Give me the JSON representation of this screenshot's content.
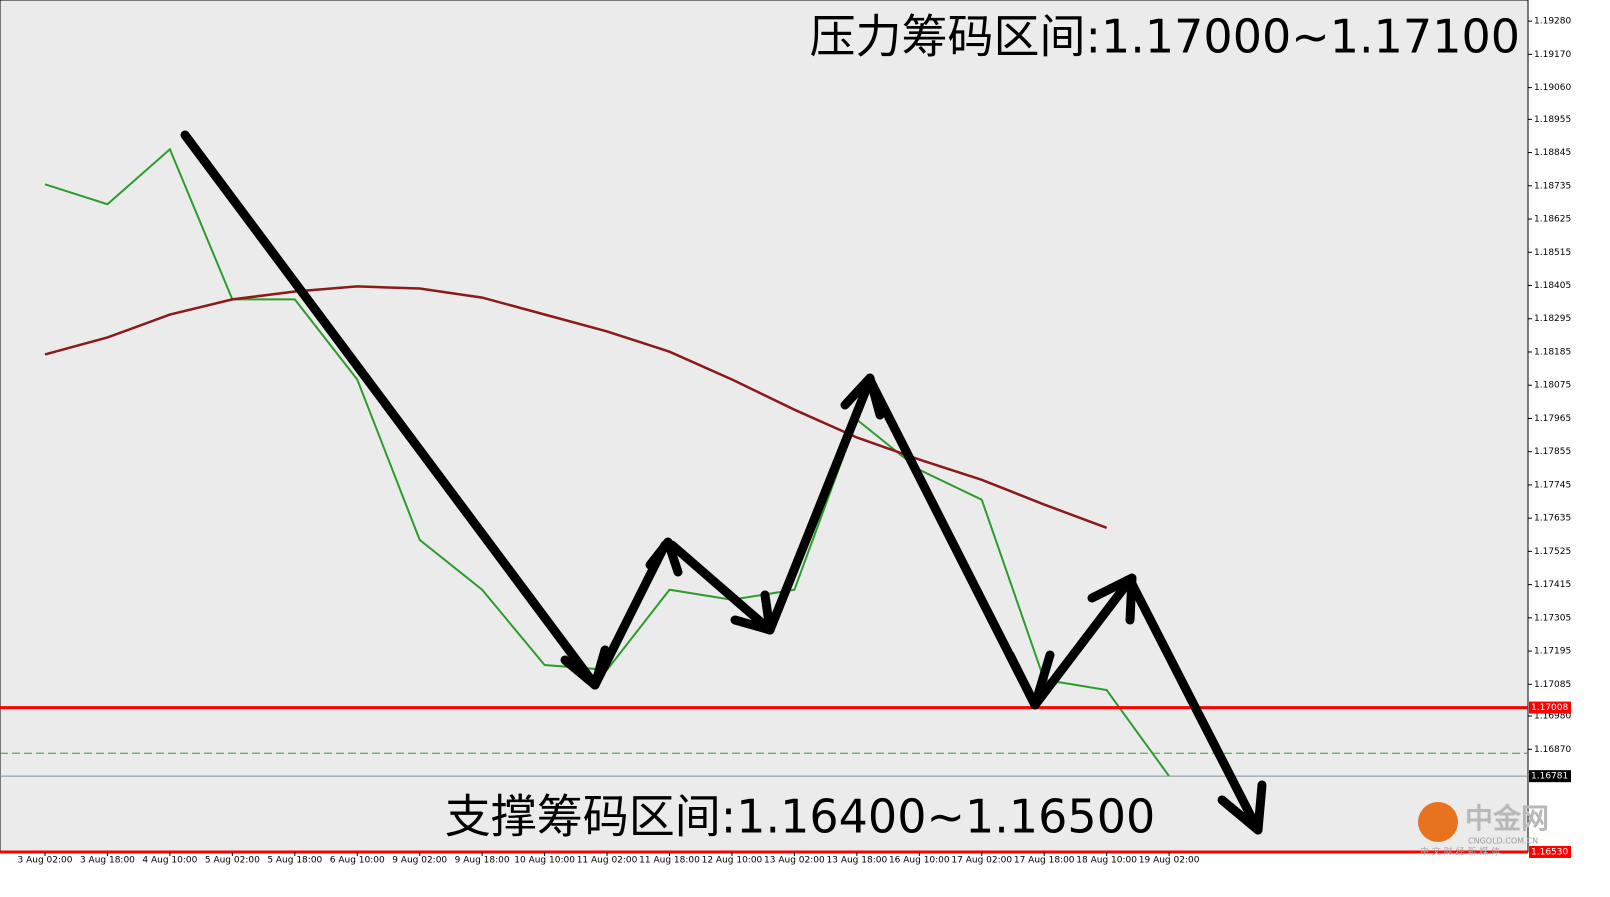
{
  "chart_data": {
    "type": "line",
    "annotations": [
      "压力筹码区间:1.17000~1.17100",
      "支撑筹码区间:1.16400~1.16500"
    ],
    "logo": {
      "name": "中金网",
      "site": "CNGOLD.COM.CN",
      "slogan": "中 文 财 经 新 媒 体"
    },
    "categories": [
      "3 Aug 02:00",
      "3 Aug 18:00",
      "4 Aug 10:00",
      "5 Aug 02:00",
      "5 Aug 18:00",
      "6 Aug 10:00",
      "9 Aug 02:00",
      "9 Aug 18:00",
      "10 Aug 10:00",
      "11 Aug 02:00",
      "11 Aug 18:00",
      "12 Aug 10:00",
      "13 Aug 02:00",
      "13 Aug 18:00",
      "16 Aug 10:00",
      "17 Aug 02:00",
      "17 Aug 18:00",
      "18 Aug 10:00",
      "19 Aug 02:00"
    ],
    "series": [
      {
        "name": "Price",
        "color": "#2a9d2a",
        "values": [
          1.1874,
          1.18674,
          1.18856,
          1.18359,
          1.18359,
          1.18094,
          1.17563,
          1.17398,
          1.17149,
          1.17133,
          1.17398,
          1.17365,
          1.17398,
          1.17961,
          1.17795,
          1.17696,
          1.171,
          1.17066,
          1.16781
        ]
      },
      {
        "name": "MA",
        "color": "#8b1a1a",
        "values": [
          1.18177,
          1.18233,
          1.18309,
          1.18359,
          1.18385,
          1.18402,
          1.18395,
          1.18365,
          1.18309,
          1.18253,
          1.18186,
          1.18094,
          1.17994,
          1.17902,
          1.17829,
          1.17762,
          1.1768,
          1.17603,
          null
        ]
      }
    ],
    "levels": [
      {
        "value": 1.17008,
        "label": "1.17008",
        "color": "#ff0000"
      },
      {
        "value": 1.16857,
        "label": "",
        "color": "#22aa22"
      },
      {
        "value": 1.16781,
        "label": "1.16781",
        "color": "#7f8fa0"
      },
      {
        "value": 1.1653,
        "label": "1.16530",
        "color": "#ff0000"
      }
    ],
    "ylim": [
      1.1653,
      1.1935
    ],
    "yticks": [
      {
        "value": 1.1928,
        "label": "1.19280"
      },
      {
        "value": 1.1917,
        "label": "1.19170"
      },
      {
        "value": 1.1906,
        "label": "1.19060"
      },
      {
        "value": 1.18955,
        "label": "1.18955"
      },
      {
        "value": 1.18845,
        "label": "1.18845"
      },
      {
        "value": 1.18735,
        "label": "1.18735"
      },
      {
        "value": 1.18625,
        "label": "1.18625"
      },
      {
        "value": 1.18515,
        "label": "1.18515"
      },
      {
        "value": 1.18405,
        "label": "1.18405"
      },
      {
        "value": 1.18295,
        "label": "1.18295"
      },
      {
        "value": 1.18185,
        "label": "1.18185"
      },
      {
        "value": 1.18075,
        "label": "1.18075"
      },
      {
        "value": 1.17965,
        "label": "1.17965"
      },
      {
        "value": 1.17855,
        "label": "1.17855"
      },
      {
        "value": 1.17745,
        "label": "1.17745"
      },
      {
        "value": 1.17635,
        "label": "1.17635"
      },
      {
        "value": 1.17525,
        "label": "1.17525"
      },
      {
        "value": 1.17415,
        "label": "1.17415"
      },
      {
        "value": 1.17305,
        "label": "1.17305"
      },
      {
        "value": 1.17195,
        "label": "1.17195"
      },
      {
        "value": 1.17085,
        "label": "1.17085"
      },
      {
        "value": 1.1698,
        "label": "1.16980"
      },
      {
        "value": 1.1687,
        "label": "1.16870"
      }
    ]
  }
}
